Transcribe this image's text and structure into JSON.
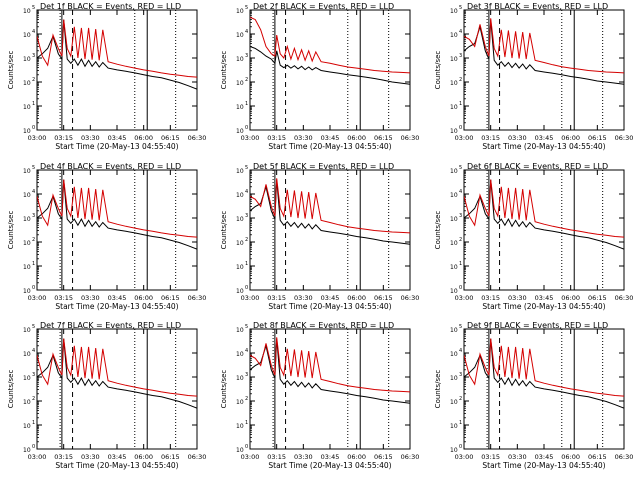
{
  "figure": {
    "xlabel": "Start Time (20-May-13 04:55:40)",
    "ylabel": "Counts/sec",
    "x_ticks": [
      "03:00",
      "03:15",
      "03:30",
      "03:45",
      "06:00",
      "06:15",
      "06:30"
    ],
    "y_ticks": [
      "10",
      "10",
      "10",
      "10",
      "10",
      "10"
    ],
    "y_tick_exponents": [
      "0",
      "1",
      "2",
      "3",
      "4",
      "5"
    ],
    "legend_suffix": "BLACK = Events, RED = LLD",
    "colors": {
      "events": "#000000",
      "lld": "#d40000",
      "axis": "#000000",
      "background": "#ffffff"
    }
  },
  "chart_data": [
    {
      "type": "line",
      "title": "Det 1f BLACK = Events, RED = LLD",
      "detector": "Det 1f",
      "y_scale": "log",
      "ylim": [
        1,
        100000
      ],
      "x": [
        0,
        3,
        6,
        9,
        12,
        14,
        15,
        17,
        19,
        21,
        23,
        25,
        27,
        29,
        31,
        33,
        35,
        37,
        40,
        45,
        50,
        55,
        60,
        65,
        70,
        75,
        80,
        85,
        90
      ],
      "series": [
        {
          "name": "Events",
          "values": [
            1000,
            1500,
            2500,
            8000,
            1500,
            900,
            40000,
            900,
            600,
            900,
            500,
            900,
            450,
            800,
            450,
            700,
            420,
            650,
            380,
            320,
            280,
            240,
            200,
            170,
            150,
            120,
            95,
            70,
            50
          ]
        },
        {
          "name": "LLD",
          "values": [
            8000,
            1200,
            500,
            9000,
            2500,
            1200,
            40000,
            2500,
            1200,
            20000,
            1000,
            18000,
            900,
            18000,
            850,
            16000,
            800,
            15000,
            700,
            550,
            450,
            380,
            320,
            280,
            240,
            210,
            190,
            170,
            160
          ]
        }
      ]
    },
    {
      "type": "line",
      "title": "Det 2f BLACK = Events, RED = LLD",
      "detector": "Det 2f",
      "y_scale": "log",
      "ylim": [
        1,
        100000
      ],
      "x": [
        0,
        3,
        6,
        9,
        12,
        14,
        15,
        17,
        19,
        21,
        23,
        25,
        27,
        29,
        31,
        33,
        35,
        37,
        40,
        45,
        50,
        55,
        60,
        65,
        70,
        75,
        80,
        85,
        90
      ],
      "series": [
        {
          "name": "Events",
          "values": [
            3000,
            2500,
            1800,
            1200,
            900,
            600,
            2000,
            500,
            400,
            500,
            380,
            480,
            350,
            450,
            330,
            420,
            320,
            400,
            300,
            260,
            230,
            200,
            180,
            160,
            140,
            120,
            100,
            90,
            80
          ]
        },
        {
          "name": "LLD",
          "values": [
            50000,
            40000,
            15000,
            3000,
            1500,
            1200,
            9000,
            1500,
            1000,
            3000,
            900,
            2500,
            850,
            2200,
            800,
            2000,
            750,
            1800,
            700,
            600,
            500,
            420,
            380,
            340,
            300,
            280,
            260,
            250,
            240
          ]
        }
      ]
    },
    {
      "type": "line",
      "title": "Det 3f BLACK = Events, RED = LLD",
      "detector": "Det 3f",
      "y_scale": "log",
      "ylim": [
        1,
        100000
      ],
      "x": [
        0,
        3,
        6,
        9,
        12,
        14,
        15,
        17,
        19,
        21,
        23,
        25,
        27,
        29,
        31,
        33,
        35,
        37,
        40,
        45,
        50,
        55,
        60,
        65,
        70,
        75,
        80,
        85,
        90
      ],
      "series": [
        {
          "name": "Events",
          "values": [
            2000,
            3000,
            4000,
            20000,
            2000,
            900,
            40000,
            800,
            500,
            700,
            450,
            650,
            400,
            600,
            380,
            560,
            350,
            520,
            300,
            260,
            230,
            200,
            170,
            150,
            130,
            110,
            100,
            90,
            80
          ]
        },
        {
          "name": "LLD",
          "values": [
            8000,
            6000,
            3000,
            25000,
            3000,
            1200,
            45000,
            2500,
            1200,
            15000,
            1100,
            14000,
            1000,
            13000,
            950,
            12000,
            900,
            11000,
            800,
            650,
            520,
            430,
            380,
            340,
            300,
            280,
            260,
            250,
            240
          ]
        }
      ]
    },
    {
      "type": "line",
      "title": "Det 4f BLACK = Events, RED = LLD",
      "detector": "Det 4f",
      "y_scale": "log",
      "ylim": [
        1,
        100000
      ],
      "x": [
        0,
        3,
        6,
        9,
        12,
        14,
        15,
        17,
        19,
        21,
        23,
        25,
        27,
        29,
        31,
        33,
        35,
        37,
        40,
        45,
        50,
        55,
        60,
        65,
        70,
        75,
        80,
        85,
        90
      ],
      "series": [
        {
          "name": "Events",
          "values": [
            1000,
            1500,
            2500,
            8000,
            1500,
            900,
            40000,
            900,
            600,
            900,
            500,
            900,
            450,
            800,
            450,
            700,
            420,
            650,
            380,
            320,
            280,
            240,
            200,
            170,
            150,
            120,
            95,
            70,
            50
          ]
        },
        {
          "name": "LLD",
          "values": [
            8000,
            1200,
            500,
            9000,
            2500,
            1200,
            40000,
            2500,
            1200,
            20000,
            1000,
            18000,
            900,
            18000,
            850,
            16000,
            800,
            15000,
            700,
            550,
            450,
            380,
            320,
            280,
            240,
            210,
            190,
            170,
            160
          ]
        }
      ]
    },
    {
      "type": "line",
      "title": "Det 5f BLACK = Events, RED = LLD",
      "detector": "Det 5f",
      "y_scale": "log",
      "ylim": [
        1,
        100000
      ],
      "x": [
        0,
        3,
        6,
        9,
        12,
        14,
        15,
        17,
        19,
        21,
        23,
        25,
        27,
        29,
        31,
        33,
        35,
        37,
        40,
        45,
        50,
        55,
        60,
        65,
        70,
        75,
        80,
        85,
        90
      ],
      "series": [
        {
          "name": "Events",
          "values": [
            2000,
            3000,
            4000,
            20000,
            2000,
            900,
            40000,
            800,
            500,
            700,
            450,
            650,
            400,
            600,
            380,
            560,
            350,
            520,
            300,
            260,
            230,
            200,
            170,
            150,
            130,
            110,
            100,
            90,
            80
          ]
        },
        {
          "name": "LLD",
          "values": [
            8000,
            6000,
            3000,
            25000,
            3000,
            1200,
            45000,
            2500,
            1200,
            15000,
            1100,
            14000,
            1000,
            13000,
            950,
            12000,
            900,
            11000,
            800,
            650,
            520,
            430,
            380,
            340,
            300,
            280,
            260,
            250,
            240
          ]
        }
      ]
    },
    {
      "type": "line",
      "title": "Det 6f BLACK = Events, RED = LLD",
      "detector": "Det 6f",
      "y_scale": "log",
      "ylim": [
        1,
        100000
      ],
      "x": [
        0,
        3,
        6,
        9,
        12,
        14,
        15,
        17,
        19,
        21,
        23,
        25,
        27,
        29,
        31,
        33,
        35,
        37,
        40,
        45,
        50,
        55,
        60,
        65,
        70,
        75,
        80,
        85,
        90
      ],
      "series": [
        {
          "name": "Events",
          "values": [
            1000,
            1500,
            2500,
            8000,
            1500,
            900,
            40000,
            900,
            600,
            900,
            500,
            900,
            450,
            800,
            450,
            700,
            420,
            650,
            380,
            320,
            280,
            240,
            200,
            170,
            150,
            120,
            95,
            70,
            50
          ]
        },
        {
          "name": "LLD",
          "values": [
            8000,
            1200,
            500,
            9000,
            2500,
            1200,
            40000,
            2500,
            1200,
            20000,
            1000,
            18000,
            900,
            18000,
            850,
            16000,
            800,
            15000,
            700,
            550,
            450,
            380,
            320,
            280,
            240,
            210,
            190,
            170,
            160
          ]
        }
      ]
    },
    {
      "type": "line",
      "title": "Det 7f BLACK = Events, RED = LLD",
      "detector": "Det 7f",
      "y_scale": "log",
      "ylim": [
        1,
        100000
      ],
      "x": [
        0,
        3,
        6,
        9,
        12,
        14,
        15,
        17,
        19,
        21,
        23,
        25,
        27,
        29,
        31,
        33,
        35,
        37,
        40,
        45,
        50,
        55,
        60,
        65,
        70,
        75,
        80,
        85,
        90
      ],
      "series": [
        {
          "name": "Events",
          "values": [
            1000,
            1500,
            2500,
            8000,
            1500,
            900,
            40000,
            900,
            600,
            900,
            500,
            900,
            450,
            800,
            450,
            700,
            420,
            650,
            380,
            320,
            280,
            240,
            200,
            170,
            150,
            120,
            95,
            70,
            50
          ]
        },
        {
          "name": "LLD",
          "values": [
            8000,
            1200,
            500,
            9000,
            2500,
            1200,
            40000,
            2500,
            1200,
            20000,
            1000,
            18000,
            900,
            18000,
            850,
            16000,
            800,
            15000,
            700,
            550,
            450,
            380,
            320,
            280,
            240,
            210,
            190,
            170,
            160
          ]
        }
      ]
    },
    {
      "type": "line",
      "title": "Det 8f BLACK = Events, RED = LLD",
      "detector": "Det 8f",
      "y_scale": "log",
      "ylim": [
        1,
        100000
      ],
      "x": [
        0,
        3,
        6,
        9,
        12,
        14,
        15,
        17,
        19,
        21,
        23,
        25,
        27,
        29,
        31,
        33,
        35,
        37,
        40,
        45,
        50,
        55,
        60,
        65,
        70,
        75,
        80,
        85,
        90
      ],
      "series": [
        {
          "name": "Events",
          "values": [
            2000,
            3000,
            4000,
            20000,
            2000,
            900,
            40000,
            800,
            500,
            700,
            450,
            650,
            400,
            600,
            380,
            560,
            350,
            520,
            300,
            260,
            230,
            200,
            170,
            150,
            130,
            110,
            100,
            90,
            80
          ]
        },
        {
          "name": "LLD",
          "values": [
            8000,
            6000,
            3000,
            25000,
            3000,
            1200,
            45000,
            2500,
            1200,
            15000,
            1100,
            14000,
            1000,
            13000,
            950,
            12000,
            900,
            11000,
            800,
            650,
            520,
            430,
            380,
            340,
            300,
            280,
            260,
            250,
            240
          ]
        }
      ]
    },
    {
      "type": "line",
      "title": "Det 9f BLACK = Events, RED = LLD",
      "detector": "Det 9f",
      "y_scale": "log",
      "ylim": [
        1,
        100000
      ],
      "x": [
        0,
        3,
        6,
        9,
        12,
        14,
        15,
        17,
        19,
        21,
        23,
        25,
        27,
        29,
        31,
        33,
        35,
        37,
        40,
        45,
        50,
        55,
        60,
        65,
        70,
        75,
        80,
        85,
        90
      ],
      "series": [
        {
          "name": "Events",
          "values": [
            1000,
            1500,
            2500,
            8000,
            1500,
            900,
            40000,
            900,
            600,
            900,
            500,
            900,
            450,
            800,
            450,
            700,
            420,
            650,
            380,
            320,
            280,
            240,
            200,
            170,
            150,
            120,
            95,
            70,
            50
          ]
        },
        {
          "name": "LLD",
          "values": [
            8000,
            1200,
            500,
            9000,
            2500,
            1200,
            40000,
            2500,
            1200,
            20000,
            1000,
            18000,
            900,
            18000,
            850,
            16000,
            800,
            15000,
            700,
            550,
            450,
            380,
            320,
            280,
            240,
            210,
            190,
            170,
            160
          ]
        }
      ]
    }
  ]
}
